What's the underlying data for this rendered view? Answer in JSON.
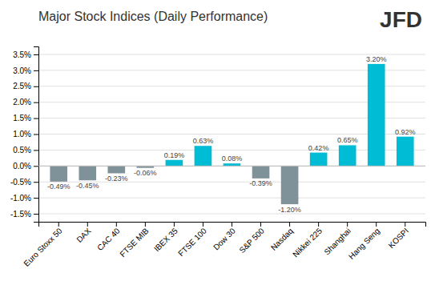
{
  "chart_data": {
    "type": "bar",
    "title": "Major Stock Indices (Daily Performance)",
    "annotation": "JFD",
    "categories": [
      "Euro Stoxx 50",
      "DAX",
      "CAC 40",
      "FTSE MIB",
      "IBEX 35",
      "FTSE 100",
      "Dow 30",
      "S&P 500",
      "Nasdaq",
      "Nikkei 225",
      "Shanghai",
      "Hang Seng",
      "KOSPI"
    ],
    "values": [
      -0.49,
      -0.45,
      -0.23,
      -0.06,
      0.19,
      0.63,
      0.08,
      -0.39,
      -1.2,
      0.42,
      0.65,
      3.2,
      0.92
    ],
    "value_labels": [
      "-0.49%",
      "-0.45%",
      "-0.23%",
      "-0.06%",
      "0.19%",
      "0.63%",
      "0.08%",
      "-0.39%",
      "-1.20%",
      "0.42%",
      "0.65%",
      "3.20%",
      "0.92%"
    ],
    "colors": [
      "#7f9199",
      "#7f9199",
      "#7f9199",
      "#7f9199",
      "#00bcd4",
      "#00bcd4",
      "#00bcd4",
      "#7f9199",
      "#7f9199",
      "#00bcd4",
      "#00bcd4",
      "#00bcd4",
      "#00bcd4"
    ],
    "data_labels": true,
    "ylim": [
      -1.75,
      3.75
    ],
    "yticks": [
      {
        "value": -1.5,
        "label": "-1.5%"
      },
      {
        "value": -1.0,
        "label": "-1.0%"
      },
      {
        "value": -0.5,
        "label": "-0.5%"
      },
      {
        "value": 0.0,
        "label": "0.0%"
      },
      {
        "value": 0.5,
        "label": "0.5%"
      },
      {
        "value": 1.0,
        "label": "1.0%"
      },
      {
        "value": 1.5,
        "label": "1.5%"
      },
      {
        "value": 2.0,
        "label": "2.0%"
      },
      {
        "value": 2.5,
        "label": "2.5%"
      },
      {
        "value": 3.0,
        "label": "3.0%"
      },
      {
        "value": 3.5,
        "label": "3.5%"
      }
    ],
    "grid": true
  }
}
